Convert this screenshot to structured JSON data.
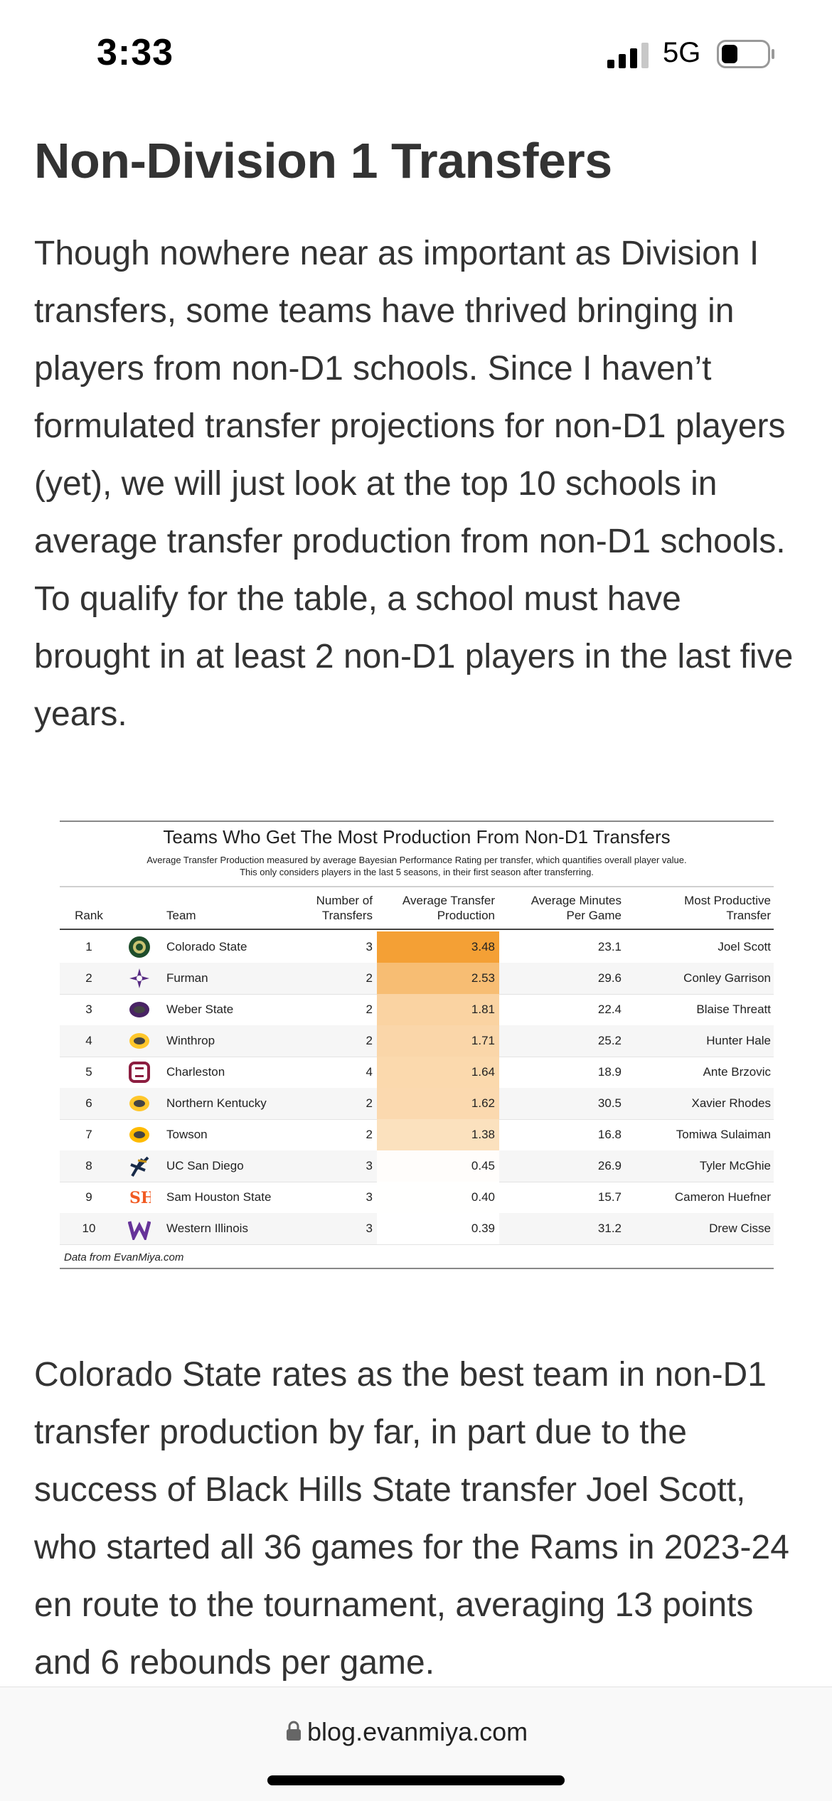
{
  "status_bar": {
    "time": "3:33",
    "network": "5G"
  },
  "article": {
    "heading": "Non-Division 1 Transfers",
    "paragraph1": "Though nowhere near as important as Division I transfers, some teams have thrived bringing in players from non-D1 schools. Since I haven’t formulated transfer projections for non-D1 players (yet), we will just look at the top 10 schools in average transfer production from non-D1 schools. To qualify for the table, a school must have brought in at least 2 non-D1 players in the last five years.",
    "paragraph2": "Colorado State rates as the best team in non-D1 transfer production by far, in part due to the success of Black Hills State transfer Joel Scott, who started all 36 games for the Rams in 2023-24 en route to the tournament, averaging 13 points and 6 rebounds per game."
  },
  "figure": {
    "title": "Teams Who Get The Most Production From Non-D1 Transfers",
    "subtitle_line1": "Average Transfer Production measured by average Bayesian Performance Rating per transfer, which quantifies overall player value.",
    "subtitle_line2": "This only considers players in the last 5 seasons, in their first season after transferring.",
    "headers": {
      "rank": "Rank",
      "team": "Team",
      "transfers": [
        "Number of",
        "Transfers"
      ],
      "production": [
        "Average Transfer",
        "Production"
      ],
      "minutes": [
        "Average Minutes",
        "Per Game"
      ],
      "player": [
        "Most Productive",
        "Transfer"
      ]
    },
    "source": "Data from EvanMiya.com",
    "heat_colors": {
      "high": "#f4a035",
      "low": "#ffffff"
    }
  },
  "chart_data": {
    "type": "table",
    "columns": [
      "Rank",
      "Team",
      "Number of Transfers",
      "Average Transfer Production",
      "Average Minutes Per Game",
      "Most Productive Transfer"
    ],
    "rows": [
      {
        "rank": "1",
        "team": "Colorado State",
        "transfers": "3",
        "production": "3.48",
        "minutes": "23.1",
        "player": "Joel Scott",
        "logo_icon": "colorado-state-ram-logo",
        "logo_color": "#1e4d2b"
      },
      {
        "rank": "2",
        "team": "Furman",
        "transfers": "2",
        "production": "2.53",
        "minutes": "29.6",
        "player": "Conley Garrison",
        "logo_icon": "furman-star-logo",
        "logo_color": "#582c83"
      },
      {
        "rank": "3",
        "team": "Weber State",
        "transfers": "2",
        "production": "1.81",
        "minutes": "22.4",
        "player": "Blaise Threatt",
        "logo_icon": "weber-state-wildcat-logo",
        "logo_color": "#492365"
      },
      {
        "rank": "4",
        "team": "Winthrop",
        "transfers": "2",
        "production": "1.71",
        "minutes": "25.2",
        "player": "Hunter Hale",
        "logo_icon": "winthrop-eagle-logo",
        "logo_color": "#ffc72c"
      },
      {
        "rank": "5",
        "team": "Charleston",
        "transfers": "4",
        "production": "1.64",
        "minutes": "18.9",
        "player": "Ante Brzovic",
        "logo_icon": "charleston-c-logo",
        "logo_color": "#8c1d40"
      },
      {
        "rank": "6",
        "team": "Northern Kentucky",
        "transfers": "2",
        "production": "1.62",
        "minutes": "30.5",
        "player": "Xavier Rhodes",
        "logo_icon": "northern-kentucky-norse-logo",
        "logo_color": "#ffc72c"
      },
      {
        "rank": "7",
        "team": "Towson",
        "transfers": "2",
        "production": "1.38",
        "minutes": "16.8",
        "player": "Tomiwa Sulaiman",
        "logo_icon": "towson-tiger-logo",
        "logo_color": "#ffbb00"
      },
      {
        "rank": "8",
        "team": "UC San Diego",
        "transfers": "3",
        "production": "0.45",
        "minutes": "26.9",
        "player": "Tyler McGhie",
        "logo_icon": "uc-san-diego-trident-logo",
        "logo_color": "#182b49"
      },
      {
        "rank": "9",
        "team": "Sam Houston State",
        "transfers": "3",
        "production": "0.40",
        "minutes": "15.7",
        "player": "Cameron Huefner",
        "logo_icon": "sam-houston-sh-logo",
        "logo_color": "#f15a22"
      },
      {
        "rank": "10",
        "team": "Western Illinois",
        "transfers": "3",
        "production": "0.39",
        "minutes": "31.2",
        "player": "Drew Cisse",
        "logo_icon": "western-illinois-w-logo",
        "logo_color": "#663399"
      }
    ]
  },
  "browser": {
    "url": "blog.evanmiya.com"
  }
}
